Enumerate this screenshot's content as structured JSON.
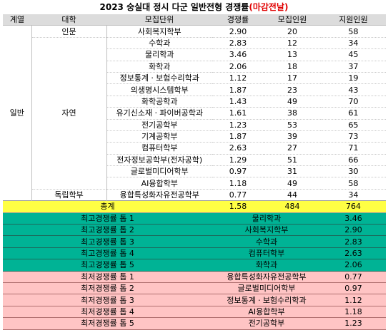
{
  "title": {
    "main": "2023 숭실대 정시 다군 일반전형 경쟁률",
    "suffix": "(마감전날)"
  },
  "headers": [
    "계열",
    "대학",
    "모집단위",
    "경쟁률",
    "모집인원",
    "지원인원"
  ],
  "group": "일반",
  "colleges": {
    "inmun": "인문",
    "jayeon": "자연",
    "dongnip": "독립학부"
  },
  "rows": [
    {
      "unit": "사회복지학부",
      "rate": "2.90",
      "quota": "20",
      "applicants": "58"
    },
    {
      "unit": "수학과",
      "rate": "2.83",
      "quota": "12",
      "applicants": "34"
    },
    {
      "unit": "물리학과",
      "rate": "3.46",
      "quota": "13",
      "applicants": "45"
    },
    {
      "unit": "화학과",
      "rate": "2.06",
      "quota": "18",
      "applicants": "37"
    },
    {
      "unit": "정보통계ㆍ보험수리학과",
      "rate": "1.12",
      "quota": "17",
      "applicants": "19"
    },
    {
      "unit": "의생명시스템학부",
      "rate": "1.87",
      "quota": "23",
      "applicants": "43"
    },
    {
      "unit": "화학공학과",
      "rate": "1.43",
      "quota": "49",
      "applicants": "70"
    },
    {
      "unit": "유기신소재ㆍ파이버공학과",
      "rate": "1.61",
      "quota": "38",
      "applicants": "61"
    },
    {
      "unit": "전기공학부",
      "rate": "1.23",
      "quota": "53",
      "applicants": "65"
    },
    {
      "unit": "기계공학부",
      "rate": "1.87",
      "quota": "39",
      "applicants": "73"
    },
    {
      "unit": "컴퓨터학부",
      "rate": "2.63",
      "quota": "27",
      "applicants": "71"
    },
    {
      "unit": "전자정보공학부(전자공학)",
      "rate": "1.29",
      "quota": "51",
      "applicants": "66"
    },
    {
      "unit": "글로벌미디어학부",
      "rate": "0.97",
      "quota": "31",
      "applicants": "30"
    },
    {
      "unit": "AI융합학부",
      "rate": "1.18",
      "quota": "49",
      "applicants": "58"
    },
    {
      "unit": "융합특성화자유전공학부",
      "rate": "0.77",
      "quota": "44",
      "applicants": "34"
    }
  ],
  "total": {
    "label": "총계",
    "rate": "1.58",
    "quota": "484",
    "applicants": "764"
  },
  "top": [
    {
      "label": "최고경쟁률 톱 1",
      "unit": "물리학과",
      "rate": "3.46"
    },
    {
      "label": "최고경쟁률 톱 2",
      "unit": "사회복지학부",
      "rate": "2.90"
    },
    {
      "label": "최고경쟁률 톱 3",
      "unit": "수학과",
      "rate": "2.83"
    },
    {
      "label": "최고경쟁률 톱 4",
      "unit": "컴퓨터학부",
      "rate": "2.63"
    },
    {
      "label": "최고경쟁률 톱 5",
      "unit": "화학과",
      "rate": "2.06"
    }
  ],
  "low": [
    {
      "label": "최저경쟁률 톱 1",
      "unit": "융합특성화자유전공학부",
      "rate": "0.77"
    },
    {
      "label": "최저경쟁률 톱 2",
      "unit": "글로벌미디어학부",
      "rate": "0.97"
    },
    {
      "label": "최저경쟁률 톱 3",
      "unit": "정보통계ㆍ보험수리학과",
      "rate": "1.12"
    },
    {
      "label": "최저경쟁률 톱 4",
      "unit": "AI융합학부",
      "rate": "1.18"
    },
    {
      "label": "최저경쟁률 톱 5",
      "unit": "전기공학부",
      "rate": "1.23"
    }
  ],
  "colors": {
    "header": "#dcdcdc",
    "total": "#ffff44",
    "top": "#00b395",
    "low": "#ffc4c4",
    "accent": "#e00000"
  }
}
